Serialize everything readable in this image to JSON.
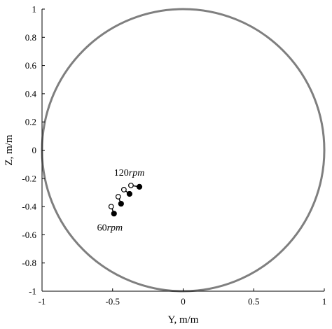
{
  "chart_data": {
    "type": "scatter",
    "title": "",
    "xlabel": "Y, m/m",
    "ylabel": "Z, m/m",
    "xlim": [
      -1,
      1
    ],
    "ylim": [
      -1,
      1
    ],
    "x_ticks": [
      -1,
      -0.5,
      0,
      0.5,
      1
    ],
    "x_tick_labels": [
      "-1",
      "-0.5",
      "0",
      "0.5",
      "1"
    ],
    "y_ticks": [
      -1,
      -0.8,
      -0.6,
      -0.4,
      -0.2,
      0,
      0.2,
      0.4,
      0.6,
      0.8,
      1
    ],
    "y_tick_labels": [
      "-1",
      "-0.8",
      "-0.6",
      "-0.4",
      "-0.2",
      "0",
      "0.2",
      "0.4",
      "0.6",
      "0.8",
      "1"
    ],
    "grid": false,
    "circle": {
      "center": [
        0,
        0
      ],
      "radius": 1,
      "color": "#7f7f7f"
    },
    "pairs": [
      {
        "open": [
          -0.51,
          -0.4
        ],
        "filled": [
          -0.49,
          -0.45
        ]
      },
      {
        "open": [
          -0.46,
          -0.33
        ],
        "filled": [
          -0.44,
          -0.38
        ]
      },
      {
        "open": [
          -0.42,
          -0.28
        ],
        "filled": [
          -0.38,
          -0.31
        ]
      },
      {
        "open": [
          -0.37,
          -0.25
        ],
        "filled": [
          -0.31,
          -0.26
        ]
      }
    ],
    "annotations": [
      {
        "text": "120",
        "unit": "rpm",
        "x": -0.49,
        "y": -0.18
      },
      {
        "text": "60",
        "unit": "rpm",
        "x": -0.61,
        "y": -0.57
      }
    ],
    "colors": {
      "axis": "#000000",
      "marker": "#000000"
    }
  }
}
